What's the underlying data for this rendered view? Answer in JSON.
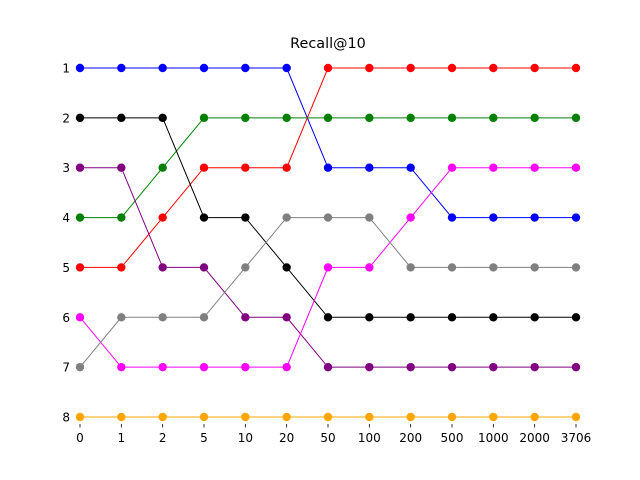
{
  "chart_data": {
    "type": "line",
    "title": "Recall@10",
    "xlabel": "",
    "ylabel": "",
    "categories": [
      "0",
      "1",
      "2",
      "5",
      "10",
      "20",
      "50",
      "100",
      "200",
      "500",
      "1000",
      "2000",
      "3706"
    ],
    "y_ticks": [
      "1",
      "2",
      "3",
      "4",
      "5",
      "6",
      "7",
      "8"
    ],
    "ylim": [
      1,
      8
    ],
    "y_inverted": true,
    "grid": false,
    "legend": "none",
    "series": [
      {
        "color": "#0000ff",
        "values": [
          1,
          1,
          1,
          1,
          1,
          1,
          3,
          3,
          3,
          4,
          4,
          4,
          4
        ]
      },
      {
        "color": "#ff0000",
        "values": [
          5,
          5,
          4,
          3,
          3,
          3,
          1,
          1,
          1,
          1,
          1,
          1,
          1
        ]
      },
      {
        "color": "#008000",
        "values": [
          4,
          4,
          3,
          2,
          2,
          2,
          2,
          2,
          2,
          2,
          2,
          2,
          2
        ]
      },
      {
        "color": "#000000",
        "values": [
          2,
          2,
          2,
          4,
          4,
          5,
          6,
          6,
          6,
          6,
          6,
          6,
          6
        ]
      },
      {
        "color": "#800080",
        "values": [
          3,
          3,
          5,
          5,
          6,
          6,
          7,
          7,
          7,
          7,
          7,
          7,
          7
        ]
      },
      {
        "color": "#ff00ff",
        "values": [
          6,
          7,
          7,
          7,
          7,
          7,
          5,
          5,
          4,
          3,
          3,
          3,
          3
        ]
      },
      {
        "color": "#808080",
        "values": [
          7,
          6,
          6,
          6,
          5,
          4,
          4,
          4,
          5,
          5,
          5,
          5,
          5
        ]
      },
      {
        "color": "#ffa500",
        "values": [
          8,
          8,
          8,
          8,
          8,
          8,
          8,
          8,
          8,
          8,
          8,
          8,
          8
        ]
      }
    ]
  }
}
